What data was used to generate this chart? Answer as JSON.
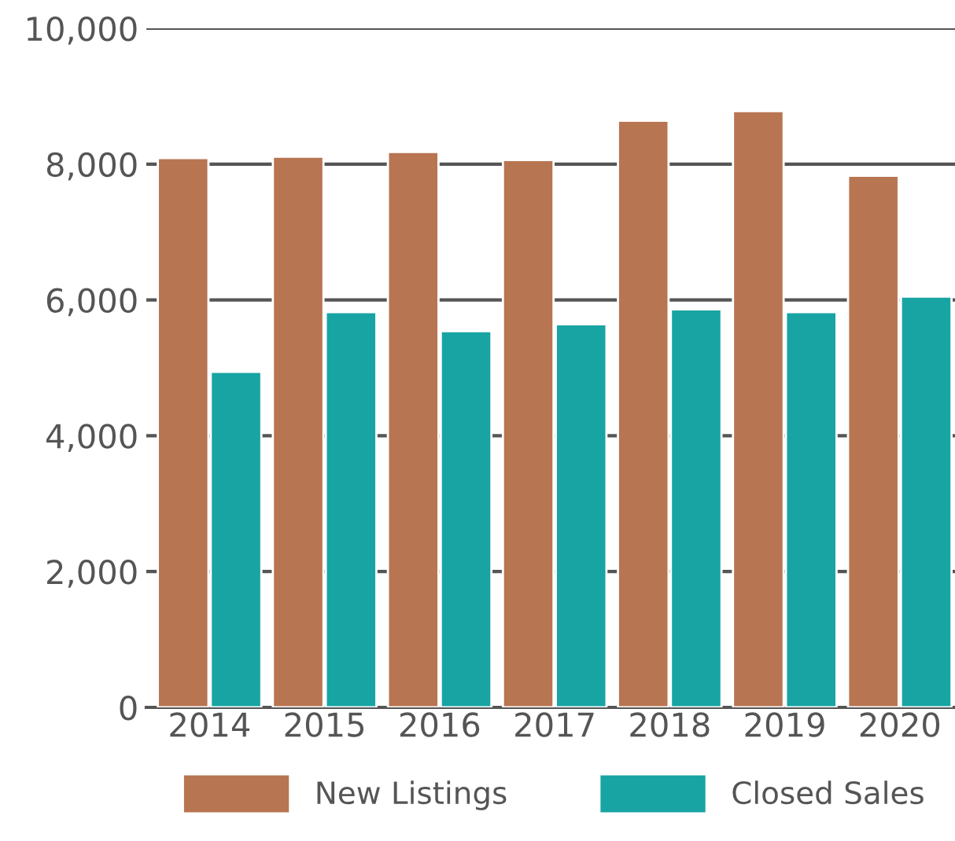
{
  "chart_data": {
    "type": "bar",
    "categories": [
      "2014",
      "2015",
      "2016",
      "2017",
      "2018",
      "2019",
      "2020"
    ],
    "series": [
      {
        "name": "New Listings",
        "color": "#b87551",
        "values": [
          8090,
          8110,
          8180,
          8060,
          8640,
          8780,
          7830
        ]
      },
      {
        "name": "Closed Sales",
        "color": "#18a4a3",
        "values": [
          4940,
          5820,
          5540,
          5640,
          5860,
          5820,
          6050
        ]
      }
    ],
    "ylim": [
      0,
      10000
    ],
    "yticks": [
      {
        "value": 0,
        "label": "0"
      },
      {
        "value": 2000,
        "label": "2,000"
      },
      {
        "value": 4000,
        "label": "4,000"
      },
      {
        "value": 6000,
        "label": "6,000"
      },
      {
        "value": 8000,
        "label": "8,000"
      },
      {
        "value": 10000,
        "label": "10,000"
      }
    ],
    "grid": "y",
    "legend": "bottom"
  }
}
